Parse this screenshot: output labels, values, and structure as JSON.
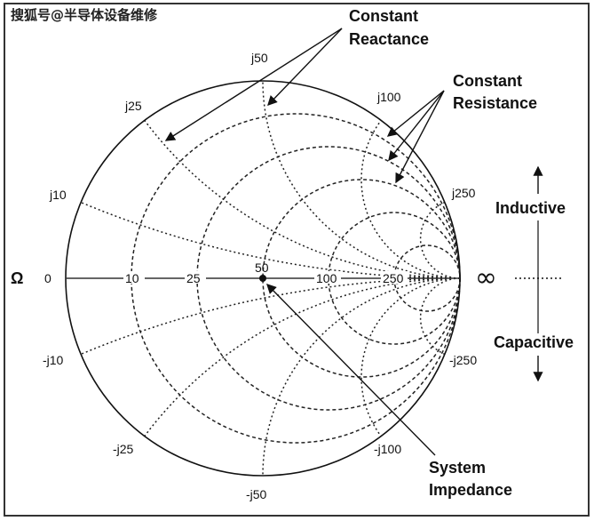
{
  "watermark": "搜狐号@半导体设备维修",
  "z0": 50,
  "resistance_values": [
    10,
    25,
    50,
    100,
    250
  ],
  "reactance_values": [
    10,
    25,
    50,
    100,
    250
  ],
  "axis_labels": {
    "omega": "Ω",
    "zero": "0",
    "r10": "10",
    "r25": "25",
    "r50": "50",
    "r100": "100",
    "r250": "250",
    "infinity": "∞"
  },
  "reactance_labels": {
    "j10": "j10",
    "j25": "j25",
    "j50": "j50",
    "j100": "j100",
    "j250": "j250",
    "nj10": "-j10",
    "nj25": "-j25",
    "nj50": "-j50",
    "nj100": "-j100",
    "nj250": "-j250"
  },
  "annotations": {
    "constant_reactance": [
      "Constant",
      "Reactance"
    ],
    "constant_resistance": [
      "Constant",
      "Resistance"
    ],
    "inductive": "Inductive",
    "capacitive": "Capacitive",
    "system_impedance": [
      "System",
      "Impedance"
    ]
  }
}
